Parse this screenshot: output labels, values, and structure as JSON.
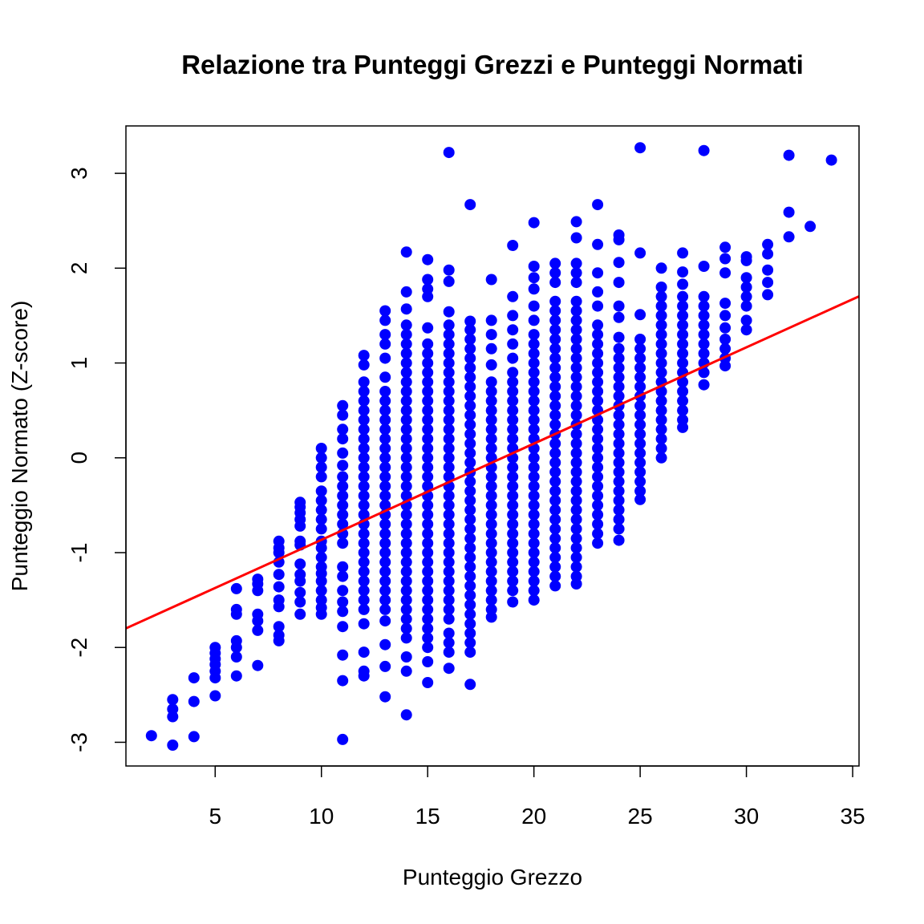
{
  "chart_data": {
    "type": "scatter",
    "title": "Relazione tra Punteggi Grezzi e Punteggi Normati",
    "xlabel": "Punteggio Grezzo",
    "ylabel": "Punteggio Normato (Z-score)",
    "xlim": [
      0.8,
      35.3
    ],
    "ylim": [
      -3.25,
      3.5
    ],
    "x_ticks": [
      5,
      10,
      15,
      20,
      25,
      30,
      35
    ],
    "y_ticks": [
      -3,
      -2,
      -1,
      0,
      1,
      2,
      3
    ],
    "grid": false,
    "legend": "none",
    "point_color": "#0000FF",
    "line_color": "#FF0000",
    "regression_line": {
      "intercept": -1.88,
      "slope": 0.1015
    },
    "columns": [
      {
        "x": 2,
        "y": [
          -2.93
        ]
      },
      {
        "x": 3,
        "y": [
          -3.03,
          -2.73,
          -2.65,
          -2.55
        ]
      },
      {
        "x": 4,
        "y": [
          -2.94,
          -2.57,
          -2.32
        ]
      },
      {
        "x": 5,
        "y": [
          -2.51,
          -2.32,
          -2.25,
          -2.18,
          -2.12,
          -2.06,
          -2.0
        ]
      },
      {
        "x": 6,
        "y": [
          -2.3,
          -2.1,
          -2.0,
          -1.93,
          -1.65,
          -1.6,
          -1.38
        ]
      },
      {
        "x": 7,
        "y": [
          -2.19,
          -1.82,
          -1.72,
          -1.65,
          -1.4,
          -1.33,
          -1.28
        ]
      },
      {
        "x": 8,
        "y": [
          -1.93,
          -1.87,
          -1.78,
          -1.57,
          -1.5,
          -1.36,
          -1.23,
          -1.1,
          -1.0,
          -0.95,
          -0.88
        ]
      },
      {
        "x": 9,
        "y": [
          -1.65,
          -1.52,
          -1.42,
          -1.3,
          -1.23,
          -1.12,
          -0.92,
          -0.88,
          -0.72,
          -0.65,
          -0.58,
          -0.52,
          -0.47
        ]
      },
      {
        "x": 10,
        "y": [
          -1.65,
          -1.58,
          -1.5,
          -1.4,
          -1.3,
          -1.22,
          -1.15,
          -1.05,
          -0.95,
          -0.88,
          -0.75,
          -0.65,
          -0.55,
          -0.45,
          -0.35,
          -0.2,
          -0.1,
          0.0,
          0.1
        ]
      },
      {
        "x": 11,
        "y": [
          -2.97,
          -2.35,
          -2.08,
          -1.78,
          -1.62,
          -1.52,
          -1.4,
          -1.25,
          -1.15,
          -0.9,
          -0.8,
          -0.7,
          -0.6,
          -0.5,
          -0.4,
          -0.3,
          -0.2,
          -0.08,
          0.05,
          0.2,
          0.3,
          0.45,
          0.55
        ]
      },
      {
        "x": 12,
        "y": [
          -2.3,
          -2.25,
          -2.05,
          -1.75,
          -1.6,
          -1.5,
          -1.4,
          -1.3,
          -1.2,
          -1.1,
          -1.0,
          -0.9,
          -0.8,
          -0.7,
          -0.6,
          -0.5,
          -0.4,
          -0.3,
          -0.2,
          -0.1,
          0.0,
          0.1,
          0.2,
          0.3,
          0.4,
          0.5,
          0.6,
          0.7,
          0.8,
          0.98,
          1.08
        ]
      },
      {
        "x": 13,
        "y": [
          -2.52,
          -2.2,
          -1.97,
          -1.72,
          -1.6,
          -1.5,
          -1.4,
          -1.3,
          -1.2,
          -1.1,
          -1.0,
          -0.9,
          -0.8,
          -0.7,
          -0.6,
          -0.5,
          -0.4,
          -0.3,
          -0.2,
          -0.1,
          0.0,
          0.1,
          0.2,
          0.3,
          0.4,
          0.5,
          0.6,
          0.7,
          0.85,
          1.05,
          1.2,
          1.3,
          1.45,
          1.55
        ]
      },
      {
        "x": 14,
        "y": [
          -2.71,
          -2.25,
          -2.1,
          -1.9,
          -1.8,
          -1.7,
          -1.6,
          -1.5,
          -1.4,
          -1.3,
          -1.2,
          -1.1,
          -1.0,
          -0.9,
          -0.8,
          -0.7,
          -0.6,
          -0.5,
          -0.4,
          -0.3,
          -0.2,
          -0.1,
          0.0,
          0.1,
          0.2,
          0.3,
          0.4,
          0.5,
          0.6,
          0.7,
          0.8,
          0.9,
          1.0,
          1.1,
          1.2,
          1.3,
          1.4,
          1.57,
          1.75,
          2.17
        ]
      },
      {
        "x": 15,
        "y": [
          -2.37,
          -2.15,
          -2.0,
          -1.9,
          -1.8,
          -1.7,
          -1.6,
          -1.5,
          -1.4,
          -1.3,
          -1.2,
          -1.1,
          -1.0,
          -0.9,
          -0.8,
          -0.7,
          -0.6,
          -0.5,
          -0.4,
          -0.3,
          -0.2,
          -0.1,
          0.0,
          0.1,
          0.2,
          0.3,
          0.4,
          0.5,
          0.6,
          0.7,
          0.8,
          0.9,
          1.0,
          1.1,
          1.2,
          1.37,
          1.7,
          1.78,
          1.88,
          2.09
        ]
      },
      {
        "x": 16,
        "y": [
          -2.22,
          -2.05,
          -1.95,
          -1.85,
          -1.7,
          -1.6,
          -1.5,
          -1.4,
          -1.3,
          -1.2,
          -1.1,
          -1.0,
          -0.9,
          -0.8,
          -0.7,
          -0.6,
          -0.5,
          -0.4,
          -0.3,
          -0.2,
          -0.1,
          0.0,
          0.1,
          0.2,
          0.3,
          0.4,
          0.5,
          0.6,
          0.7,
          0.8,
          0.9,
          1.0,
          1.1,
          1.2,
          1.3,
          1.4,
          1.54,
          1.86,
          1.98,
          3.22
        ]
      },
      {
        "x": 17,
        "y": [
          -2.39,
          -2.05,
          -1.95,
          -1.85,
          -1.75,
          -1.65,
          -1.55,
          -1.45,
          -1.35,
          -1.25,
          -1.15,
          -1.05,
          -0.95,
          -0.85,
          -0.75,
          -0.65,
          -0.55,
          -0.45,
          -0.35,
          -0.25,
          -0.15,
          -0.05,
          0.05,
          0.15,
          0.25,
          0.35,
          0.45,
          0.55,
          0.65,
          0.75,
          0.85,
          0.95,
          1.05,
          1.15,
          1.25,
          1.35,
          1.44,
          2.67
        ]
      },
      {
        "x": 18,
        "y": [
          -1.68,
          -1.6,
          -1.5,
          -1.4,
          -1.3,
          -1.2,
          -1.1,
          -1.0,
          -0.9,
          -0.8,
          -0.7,
          -0.6,
          -0.5,
          -0.4,
          -0.3,
          -0.2,
          -0.1,
          0.0,
          0.1,
          0.2,
          0.3,
          0.4,
          0.5,
          0.6,
          0.7,
          0.8,
          0.98,
          1.15,
          1.3,
          1.45,
          1.88
        ]
      },
      {
        "x": 19,
        "y": [
          -1.52,
          -1.4,
          -1.3,
          -1.2,
          -1.1,
          -1.0,
          -0.9,
          -0.8,
          -0.7,
          -0.6,
          -0.5,
          -0.4,
          -0.3,
          -0.2,
          -0.1,
          0.0,
          0.1,
          0.2,
          0.3,
          0.4,
          0.5,
          0.6,
          0.7,
          0.8,
          0.9,
          1.05,
          1.2,
          1.35,
          1.5,
          1.7,
          2.24
        ]
      },
      {
        "x": 20,
        "y": [
          -1.5,
          -1.4,
          -1.3,
          -1.2,
          -1.1,
          -1.0,
          -0.9,
          -0.8,
          -0.7,
          -0.6,
          -0.5,
          -0.4,
          -0.3,
          -0.2,
          -0.1,
          0.0,
          0.1,
          0.2,
          0.3,
          0.4,
          0.5,
          0.6,
          0.7,
          0.8,
          0.9,
          1.0,
          1.1,
          1.2,
          1.3,
          1.45,
          1.6,
          1.78,
          1.9,
          2.02,
          2.48
        ]
      },
      {
        "x": 21,
        "y": [
          -1.35,
          -1.25,
          -1.15,
          -1.05,
          -0.95,
          -0.85,
          -0.75,
          -0.65,
          -0.55,
          -0.45,
          -0.35,
          -0.25,
          -0.15,
          -0.05,
          0.05,
          0.15,
          0.25,
          0.35,
          0.45,
          0.55,
          0.65,
          0.75,
          0.85,
          0.95,
          1.05,
          1.15,
          1.25,
          1.35,
          1.45,
          1.55,
          1.65,
          1.85,
          1.95,
          2.05
        ]
      },
      {
        "x": 22,
        "y": [
          -1.33,
          -1.25,
          -1.15,
          -1.05,
          -0.95,
          -0.85,
          -0.75,
          -0.65,
          -0.55,
          -0.45,
          -0.35,
          -0.25,
          -0.15,
          -0.05,
          0.05,
          0.15,
          0.25,
          0.35,
          0.45,
          0.55,
          0.65,
          0.75,
          0.85,
          0.95,
          1.05,
          1.15,
          1.25,
          1.35,
          1.45,
          1.55,
          1.65,
          1.85,
          1.95,
          2.05,
          2.32,
          2.49
        ]
      },
      {
        "x": 23,
        "y": [
          -0.9,
          -0.8,
          -0.7,
          -0.6,
          -0.5,
          -0.4,
          -0.3,
          -0.2,
          -0.1,
          0.0,
          0.1,
          0.2,
          0.3,
          0.4,
          0.5,
          0.6,
          0.7,
          0.8,
          0.9,
          1.0,
          1.1,
          1.2,
          1.3,
          1.4,
          1.6,
          1.75,
          1.95,
          2.25,
          2.67
        ]
      },
      {
        "x": 24,
        "y": [
          -0.87,
          -0.75,
          -0.65,
          -0.55,
          -0.45,
          -0.35,
          -0.25,
          -0.15,
          -0.05,
          0.05,
          0.15,
          0.25,
          0.35,
          0.45,
          0.55,
          0.65,
          0.75,
          0.85,
          0.95,
          1.05,
          1.15,
          1.27,
          1.48,
          1.6,
          1.85,
          2.06,
          2.3,
          2.35
        ]
      },
      {
        "x": 25,
        "y": [
          -0.44,
          -0.35,
          -0.25,
          -0.15,
          -0.05,
          0.05,
          0.15,
          0.25,
          0.35,
          0.45,
          0.55,
          0.65,
          0.75,
          0.85,
          0.95,
          1.05,
          1.15,
          1.25,
          1.51,
          2.16,
          3.27
        ]
      },
      {
        "x": 26,
        "y": [
          0.0,
          0.1,
          0.2,
          0.3,
          0.4,
          0.5,
          0.6,
          0.7,
          0.8,
          0.9,
          1.0,
          1.1,
          1.2,
          1.3,
          1.4,
          1.5,
          1.6,
          1.7,
          1.8,
          2.0
        ]
      },
      {
        "x": 27,
        "y": [
          0.32,
          0.4,
          0.5,
          0.6,
          0.7,
          0.8,
          0.9,
          1.0,
          1.1,
          1.2,
          1.3,
          1.4,
          1.5,
          1.6,
          1.7,
          1.83,
          1.96,
          2.16
        ]
      },
      {
        "x": 28,
        "y": [
          0.77,
          0.9,
          1.0,
          1.1,
          1.2,
          1.3,
          1.4,
          1.5,
          1.6,
          1.7,
          2.02,
          3.24
        ]
      },
      {
        "x": 29,
        "y": [
          0.97,
          1.05,
          1.15,
          1.25,
          1.37,
          1.5,
          1.63,
          1.95,
          2.1,
          2.22
        ]
      },
      {
        "x": 30,
        "y": [
          1.35,
          1.45,
          1.6,
          1.7,
          1.8,
          1.9,
          2.08,
          2.12
        ]
      },
      {
        "x": 31,
        "y": [
          1.72,
          1.85,
          1.98,
          2.15,
          2.25
        ]
      },
      {
        "x": 32,
        "y": [
          2.33,
          2.59,
          3.19
        ]
      },
      {
        "x": 33,
        "y": [
          2.44
        ]
      },
      {
        "x": 34,
        "y": [
          3.14
        ]
      }
    ]
  }
}
